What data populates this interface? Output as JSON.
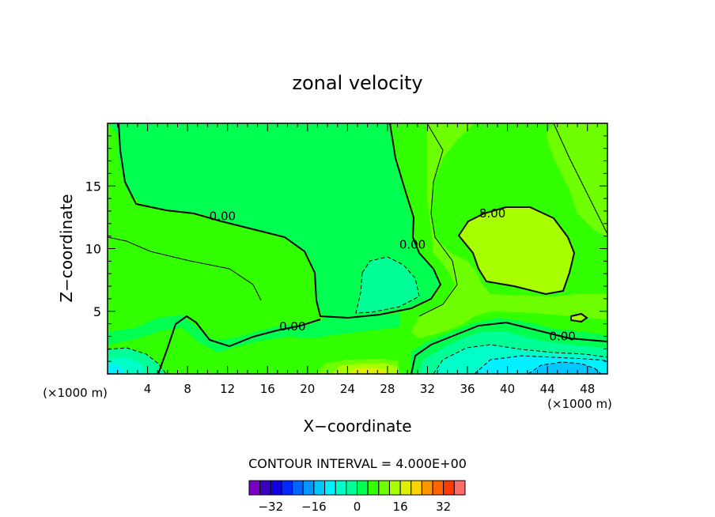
{
  "chart_data": {
    "type": "contour",
    "title": "zonal velocity",
    "xlabel": "X−coordinate",
    "ylabel": "Z−coordinate",
    "x_unit_label": "(×1000 m)",
    "xlim": [
      0,
      50
    ],
    "ylim": [
      0,
      20
    ],
    "x_ticks": [
      4,
      8,
      12,
      16,
      20,
      24,
      28,
      32,
      36,
      40,
      44,
      48
    ],
    "x_tick_labels": [
      "4",
      "8",
      "12",
      "16",
      "20",
      "24",
      "28",
      "32",
      "36",
      "40",
      "44",
      "48"
    ],
    "y_ticks": [
      5,
      10,
      15
    ],
    "y_tick_labels": [
      "5",
      "10",
      "15"
    ],
    "contour_interval_text": "CONTOUR INTERVAL = 4.000E+00",
    "contour_interval": 4,
    "contour_line_labels": [
      {
        "text": "0.00",
        "x": 11.5,
        "y": 12.6
      },
      {
        "text": "0.00",
        "x": 30.5,
        "y": 10.3
      },
      {
        "text": "0.00",
        "x": 18.5,
        "y": 3.8
      },
      {
        "text": "8.00",
        "x": 38.5,
        "y": 12.8
      },
      {
        "text": "0.00",
        "x": 45.5,
        "y": 3.0
      }
    ],
    "colorbar": {
      "levels": [
        -40,
        -36,
        -32,
        -28,
        -24,
        -20,
        -16,
        -12,
        -8,
        -4,
        0,
        4,
        8,
        12,
        16,
        20,
        24,
        28,
        32,
        36,
        40
      ],
      "colors": [
        "#7a00c8",
        "#3a00bf",
        "#1400e0",
        "#0028ff",
        "#0064ff",
        "#0096ff",
        "#00c8ff",
        "#00f0ff",
        "#00ffc8",
        "#00ff96",
        "#00ff50",
        "#32ff00",
        "#6eff00",
        "#a8ff00",
        "#dcf000",
        "#ffd200",
        "#ff9600",
        "#ff6400",
        "#ff3c00",
        "#ff6a6a"
      ],
      "tick_labels": [
        "−32",
        "−16",
        "0",
        "16",
        "32"
      ],
      "tick_values": [
        -32,
        -16,
        0,
        16,
        32
      ]
    },
    "regions": [
      {
        "value_range": [
          0,
          4
        ],
        "color": "#32ff00"
      },
      {
        "value_range": [
          -4,
          0
        ],
        "color": "#00ff50"
      },
      {
        "value_range": [
          4,
          8
        ],
        "color": "#6eff00"
      },
      {
        "value_range": [
          8,
          12
        ],
        "color": "#a8ff00"
      },
      {
        "value_range": [
          -12,
          -8
        ],
        "color": "#00f0ff"
      },
      {
        "value_range": [
          12,
          16
        ],
        "color": "#dcf000"
      }
    ]
  }
}
